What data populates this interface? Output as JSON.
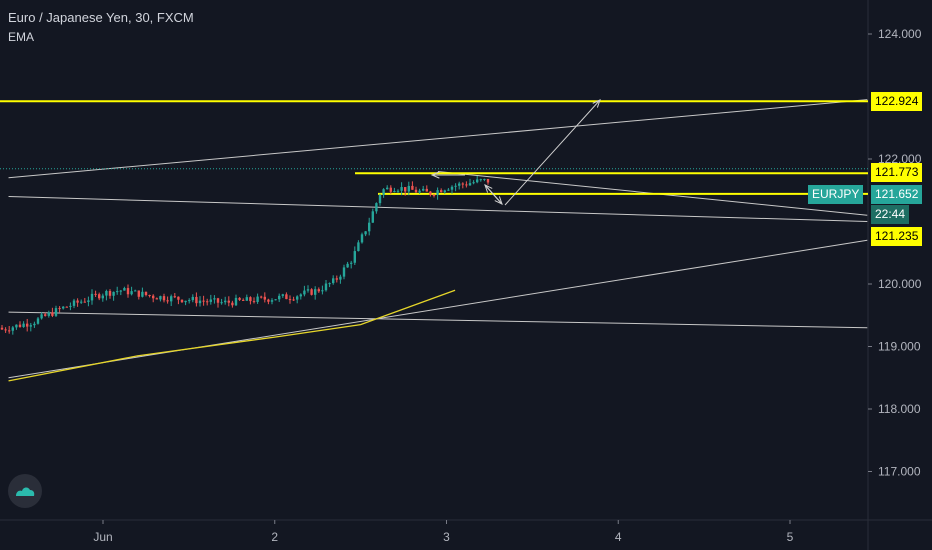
{
  "header": {
    "title": "Euro / Japanese Yen, 30, FXCM",
    "indicator": "EMA"
  },
  "colors": {
    "background": "#131722",
    "up": "#26a69a",
    "down": "#ef5350",
    "level": "#ffff00",
    "trendline": "#c8c8c8",
    "ema": "#e6d62a",
    "symbol_tag": "#26a69a"
  },
  "price_tags": {
    "symbol": "EURJPY",
    "last_price": "121.652",
    "countdown": "22:44",
    "level_1": "122.924",
    "level_2": "121.773",
    "level_3": "121.235"
  },
  "chart_data": {
    "type": "candlestick",
    "x_axis": {
      "tick_labels": [
        "Jun",
        "2",
        "3",
        "4",
        "5"
      ],
      "tick_values": [
        1,
        2,
        3,
        4,
        5
      ]
    },
    "y_axis": {
      "tick_labels": [
        "124.000",
        "122.000",
        "120.000",
        "119.000",
        "118.000",
        "117.000"
      ],
      "tick_values": [
        124.0,
        122.0,
        120.0,
        119.0,
        118.0,
        117.0
      ],
      "range": [
        116.5,
        124.5
      ]
    },
    "last_price": 121.652,
    "horizontal_levels": [
      122.924,
      121.773,
      121.235
    ],
    "price_path": [
      [
        0.45,
        119.3
      ],
      [
        0.6,
        119.4
      ],
      [
        0.75,
        119.6
      ],
      [
        0.9,
        119.75
      ],
      [
        1.0,
        119.85
      ],
      [
        1.1,
        119.9
      ],
      [
        1.3,
        119.8
      ],
      [
        1.5,
        119.75
      ],
      [
        1.7,
        119.7
      ],
      [
        1.9,
        119.75
      ],
      [
        2.1,
        119.8
      ],
      [
        2.25,
        119.9
      ],
      [
        2.35,
        120.05
      ],
      [
        2.45,
        120.4
      ],
      [
        2.55,
        121.0
      ],
      [
        2.62,
        121.5
      ],
      [
        2.7,
        121.55
      ],
      [
        2.8,
        121.5
      ],
      [
        2.9,
        121.45
      ],
      [
        3.0,
        121.55
      ],
      [
        3.1,
        121.6
      ],
      [
        3.2,
        121.65
      ]
    ],
    "ema": [
      [
        0.45,
        118.45
      ],
      [
        1.2,
        118.85
      ],
      [
        2.0,
        119.15
      ],
      [
        2.5,
        119.35
      ],
      [
        2.75,
        119.6
      ],
      [
        3.05,
        119.9
      ]
    ],
    "trendlines": [
      {
        "from": [
          0.45,
          121.7
        ],
        "to": [
          5.45,
          122.95
        ]
      },
      {
        "from": [
          0.45,
          121.4
        ],
        "to": [
          5.45,
          121.0
        ]
      },
      {
        "from": [
          0.45,
          119.55
        ],
        "to": [
          5.45,
          119.3
        ]
      },
      {
        "from": [
          0.45,
          118.5
        ],
        "to": [
          5.45,
          120.7
        ]
      },
      {
        "from": [
          2.95,
          121.8
        ],
        "to": [
          5.45,
          121.1
        ]
      }
    ]
  }
}
